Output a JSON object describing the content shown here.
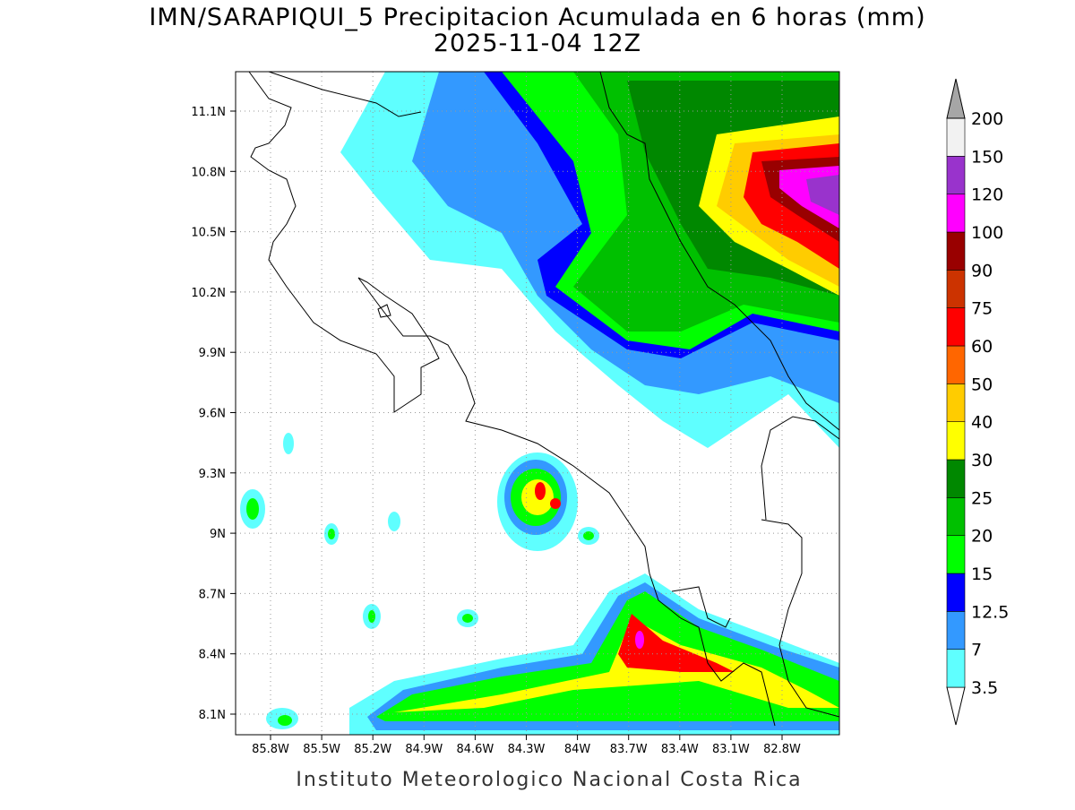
{
  "header": {
    "title": "IMN/SARAPIQUI_5 Precipitacion Acumulada en 6 horas (mm)",
    "subtitle": "2025-11-04 12Z"
  },
  "map": {
    "lat_labels": [
      "11.1N",
      "10.8N",
      "10.5N",
      "10.2N",
      "9.9N",
      "9.6N",
      "9.3N",
      "9N",
      "8.7N",
      "8.4N",
      "8.1N"
    ],
    "lon_labels": [
      "85.8W",
      "85.5W",
      "85.2W",
      "84.9W",
      "84.6W",
      "84.3W",
      "84W",
      "83.7W",
      "83.4W",
      "83.1W",
      "82.8W"
    ]
  },
  "colorbar": {
    "levels": [
      3.5,
      7,
      12.5,
      15,
      20,
      25,
      30,
      40,
      50,
      60,
      75,
      90,
      100,
      120,
      150,
      200
    ],
    "colors": [
      "#ffffff",
      "#5fffff",
      "#3399ff",
      "#0000ff",
      "#00ff00",
      "#00c000",
      "#008800",
      "#ffff00",
      "#ffcc00",
      "#ff6600",
      "#ff0000",
      "#cc3300",
      "#990000",
      "#ff00ff",
      "#9933cc",
      "#f2f2f2",
      "#a6a6a6"
    ]
  },
  "footer": "Instituto Meteorologico Nacional Costa Rica"
}
